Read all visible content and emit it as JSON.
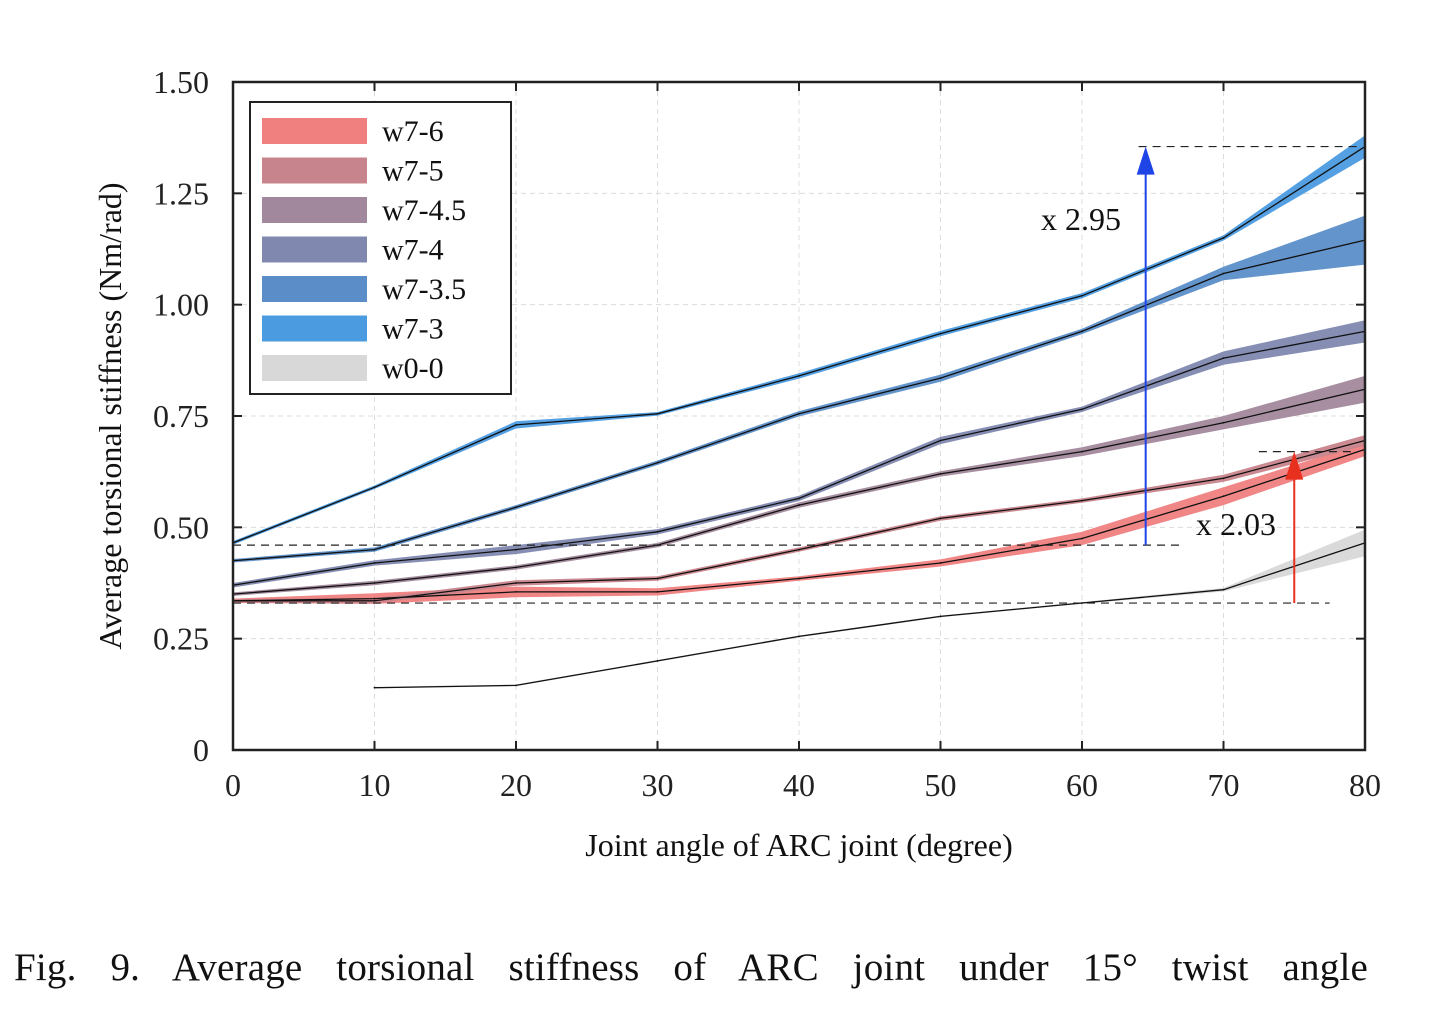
{
  "caption": "Fig. 9.  Average torsional stiffness of ARC joint under 15° twist angle",
  "chart_data": {
    "type": "line",
    "xlabel": "Joint angle of ARC joint (degree)",
    "ylabel": "Average torsional stiffness (Nm/rad)",
    "xlim": [
      0,
      80
    ],
    "ylim": [
      0,
      1.5
    ],
    "xticks": [
      0,
      10,
      20,
      30,
      40,
      50,
      60,
      70,
      80
    ],
    "xtick_labels": [
      "0",
      "10",
      "20",
      "30",
      "40",
      "50",
      "60",
      "70",
      "80"
    ],
    "yticks": [
      0,
      0.25,
      0.5,
      0.75,
      1.0,
      1.25,
      1.5
    ],
    "ytick_labels": [
      "0",
      "0.25",
      "0.50",
      "0.75",
      "1.00",
      "1.25",
      "1.50"
    ],
    "grid": true,
    "legend_position": "top-left",
    "x": [
      0,
      10,
      20,
      30,
      40,
      50,
      60,
      70,
      80
    ],
    "series": [
      {
        "name": "w7-6",
        "color": "#f08080",
        "mean": [
          0.335,
          0.34,
          0.355,
          0.355,
          0.385,
          0.42,
          0.475,
          0.57,
          0.675
        ],
        "band": [
          0.005,
          0.012,
          0.012,
          0.008,
          0.005,
          0.008,
          0.015,
          0.02,
          0.015
        ]
      },
      {
        "name": "w7-5",
        "color": "#c8848c",
        "mean": [
          0.335,
          0.335,
          0.375,
          0.385,
          0.45,
          0.52,
          0.56,
          0.61,
          0.695
        ],
        "band": [
          0.004,
          0.006,
          0.006,
          0.005,
          0.005,
          0.005,
          0.005,
          0.008,
          0.012
        ]
      },
      {
        "name": "w7-4.5",
        "color": "#a2889c",
        "mean": [
          0.35,
          0.375,
          0.41,
          0.46,
          0.55,
          0.62,
          0.67,
          0.735,
          0.81
        ],
        "band": [
          0.004,
          0.005,
          0.005,
          0.005,
          0.006,
          0.006,
          0.01,
          0.015,
          0.03
        ]
      },
      {
        "name": "w7-4",
        "color": "#8088b0",
        "mean": [
          0.37,
          0.42,
          0.45,
          0.49,
          0.565,
          0.695,
          0.765,
          0.88,
          0.94
        ],
        "band": [
          0.005,
          0.006,
          0.01,
          0.006,
          0.006,
          0.008,
          0.006,
          0.015,
          0.025
        ]
      },
      {
        "name": "w7-3.5",
        "color": "#5b8ec8",
        "mean": [
          0.425,
          0.45,
          0.545,
          0.645,
          0.755,
          0.835,
          0.94,
          1.07,
          1.145
        ],
        "band": [
          0.004,
          0.005,
          0.005,
          0.005,
          0.006,
          0.008,
          0.006,
          0.015,
          0.055
        ]
      },
      {
        "name": "w7-3",
        "color": "#4b9be0",
        "mean": [
          0.465,
          0.59,
          0.73,
          0.755,
          0.84,
          0.935,
          1.02,
          1.15,
          1.355
        ],
        "band": [
          0.004,
          0.004,
          0.008,
          0.004,
          0.006,
          0.006,
          0.006,
          0.006,
          0.025
        ]
      },
      {
        "name": "w0-0",
        "color": "#d8d8d8",
        "x": [
          10,
          20,
          30,
          40,
          50,
          60,
          70,
          80
        ],
        "mean": [
          0.14,
          0.145,
          0.2,
          0.255,
          0.3,
          0.33,
          0.36,
          0.465
        ],
        "band": [
          0.002,
          0.002,
          0.002,
          0.002,
          0.002,
          0.002,
          0.004,
          0.03
        ]
      }
    ],
    "annotations": [
      {
        "text": "x 2.95",
        "color": "#1f44e6",
        "arrow_x": 64.5,
        "from": 0.46,
        "to": 1.355
      },
      {
        "text": "x 2.03",
        "color": "#e8301e",
        "arrow_x": 75,
        "from": 0.33,
        "to": 0.67
      }
    ]
  }
}
